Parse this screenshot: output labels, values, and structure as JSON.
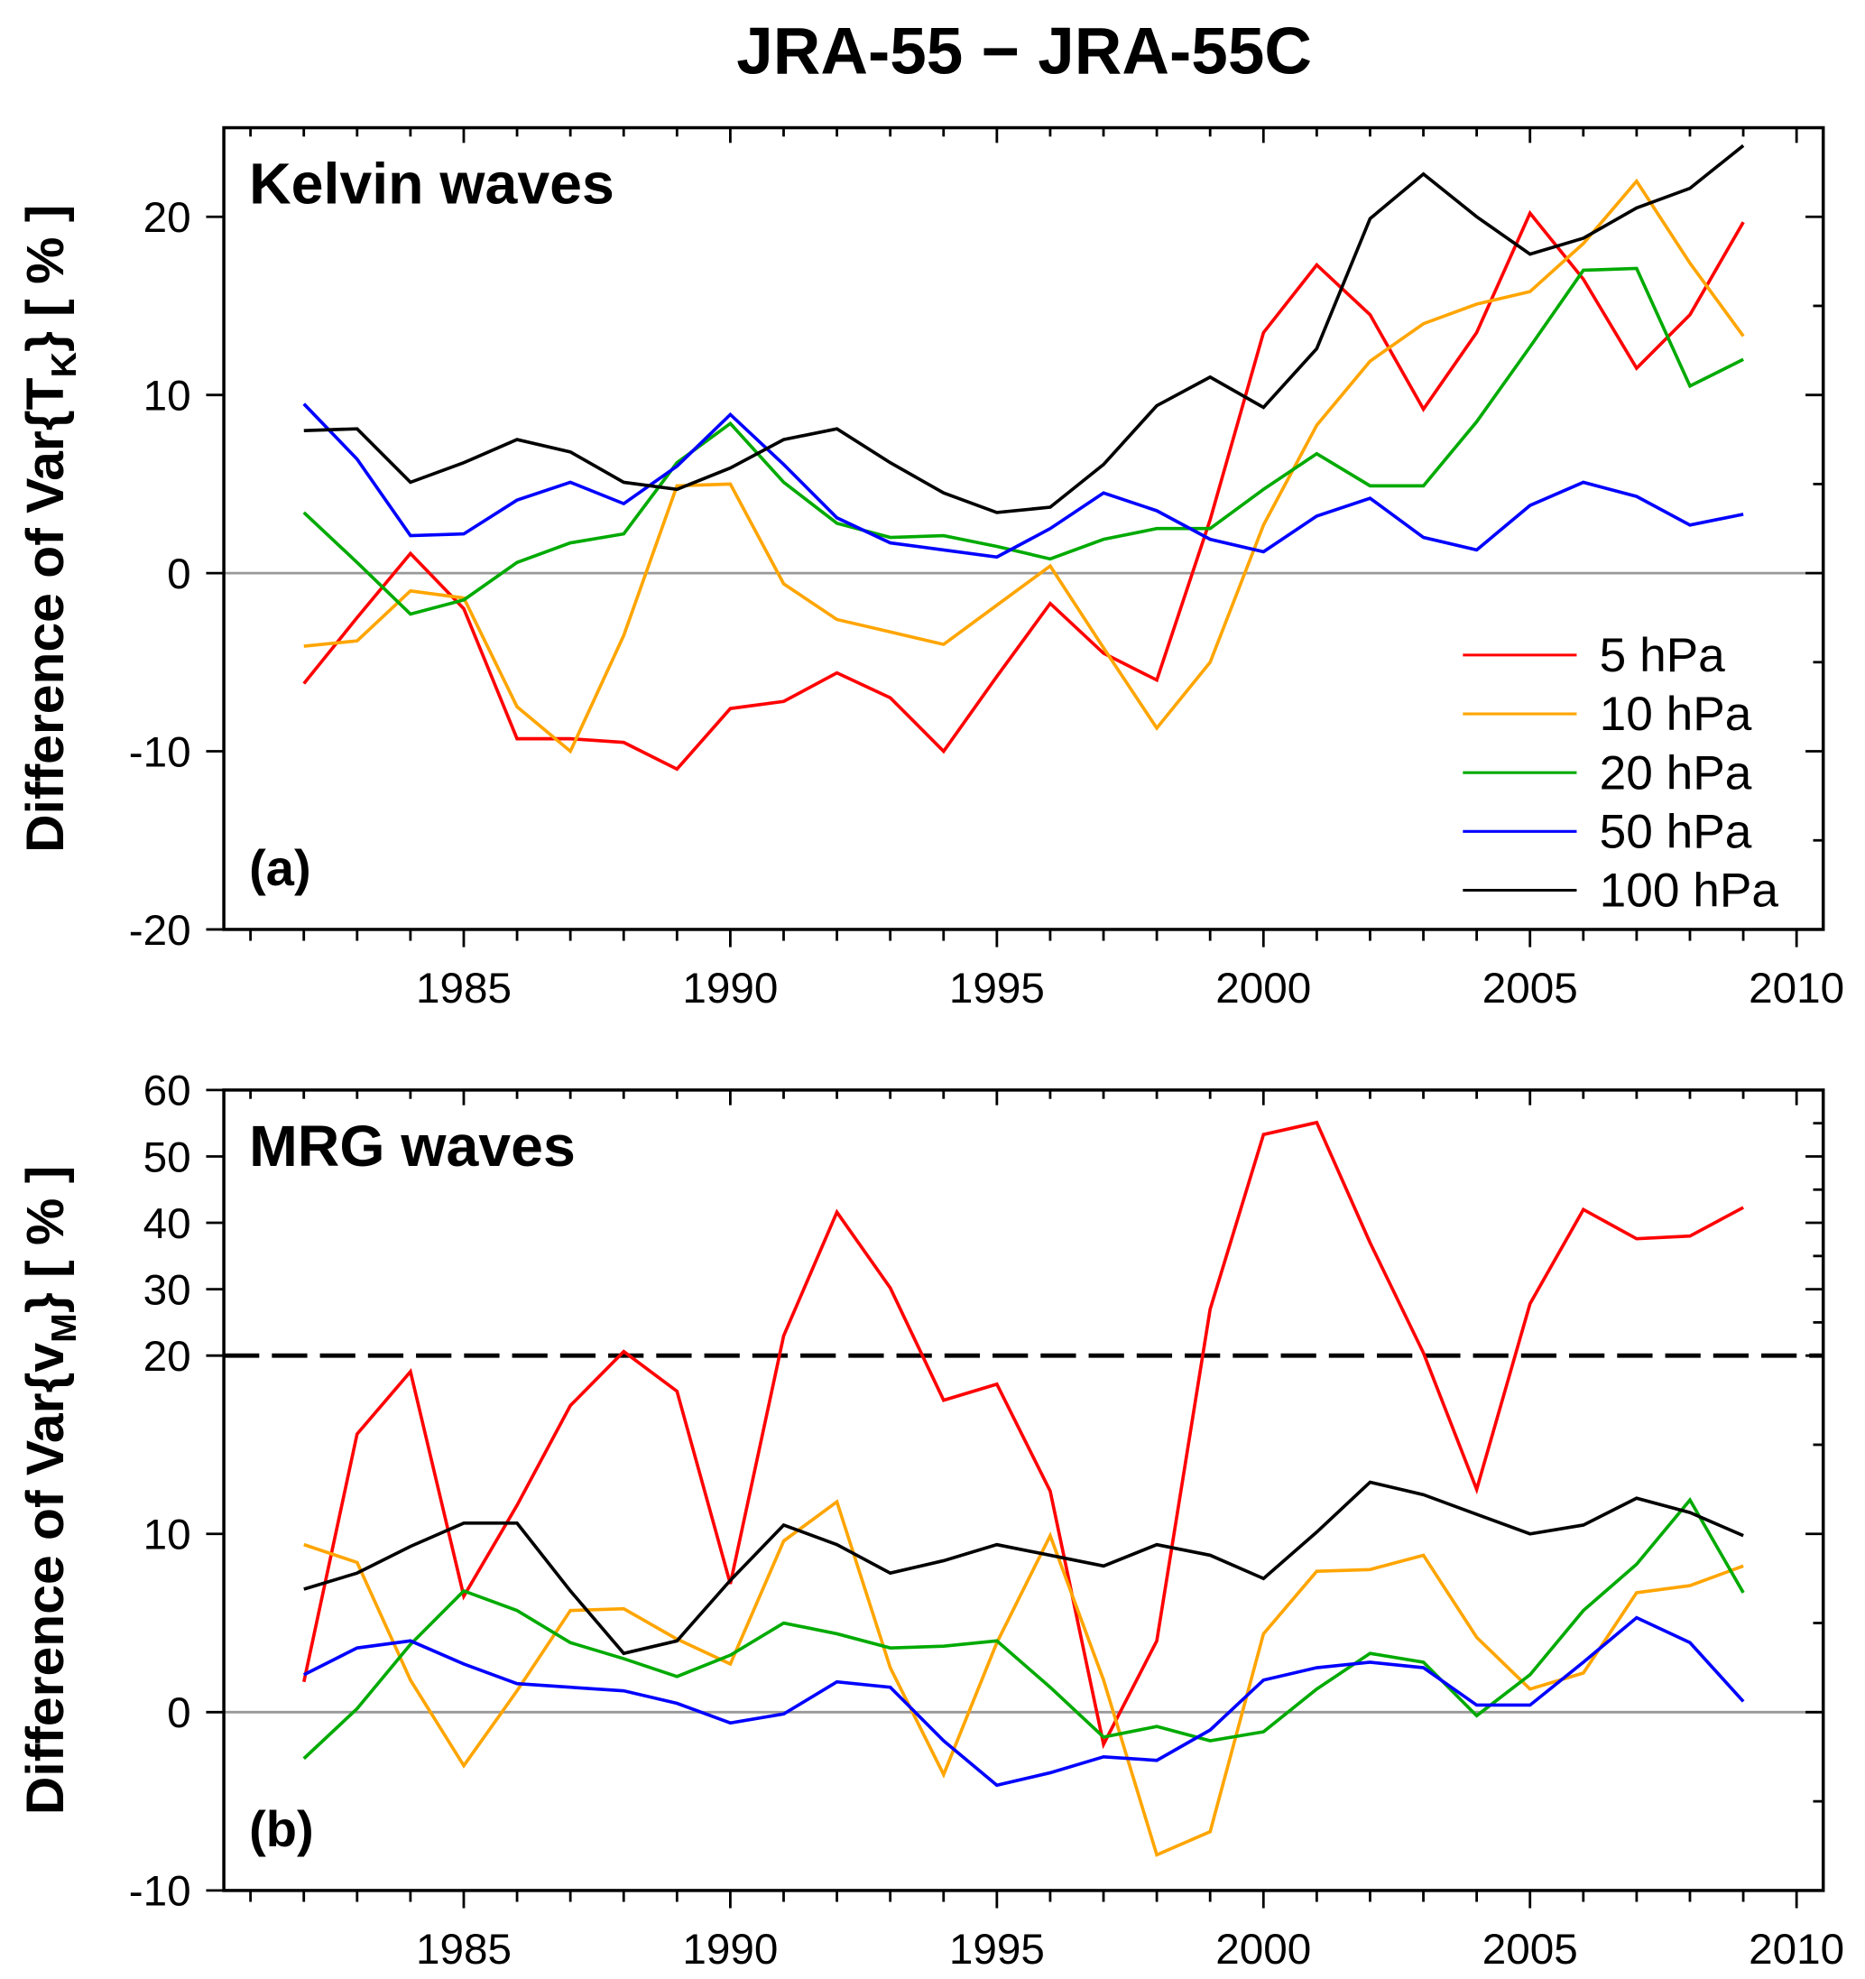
{
  "title": "JRA-55 − JRA-55C",
  "legend": {
    "placement": "right-center of panel (a)",
    "entries": [
      {
        "name": "5 hPa",
        "color": "#ff0000"
      },
      {
        "name": "10 hPa",
        "color": "#ffa500"
      },
      {
        "name": "20 hPa",
        "color": "#00aa00"
      },
      {
        "name": "50 hPa",
        "color": "#0000ff"
      },
      {
        "name": "100 hPa",
        "color": "#000000"
      }
    ]
  },
  "chart_data": [
    {
      "type": "line",
      "panel_label": "(a)",
      "title": "Kelvin waves",
      "ylabel_prefix": "Difference of Var{T",
      "ylabel_sub": "K",
      "ylabel_suffix": "}  [ % ]",
      "xlabel": "",
      "xlim": [
        1980.5,
        2010.5
      ],
      "ylim": [
        -20,
        25
      ],
      "xticks": [
        1985,
        1990,
        1995,
        2000,
        2005,
        2010
      ],
      "yticks": [
        -20,
        -10,
        0,
        10,
        20
      ],
      "reference_lines": [
        {
          "y": 0,
          "color": "#999999",
          "style": "solid"
        }
      ],
      "x": [
        1982,
        1983,
        1984,
        1985,
        1986,
        1987,
        1988,
        1989,
        1990,
        1991,
        1992,
        1993,
        1994,
        1995,
        1996,
        1997,
        1998,
        1999,
        2000,
        2001,
        2002,
        2003,
        2004,
        2005,
        2006,
        2007,
        2008,
        2009
      ],
      "series": [
        {
          "name": "5 hPa",
          "values": [
            -6.2,
            -2.5,
            1.1,
            -2,
            -9.3,
            -9.3,
            -9.5,
            -11,
            -7.6,
            -7.2,
            -5.6,
            -7,
            -10,
            -5.8,
            -1.7,
            -4.5,
            -6,
            3,
            13.5,
            17.3,
            14.5,
            9.2,
            13.5,
            20.2,
            16.5,
            11.5,
            14.5,
            19.7
          ]
        },
        {
          "name": "10 hPa",
          "values": [
            -4.1,
            -3.8,
            -1,
            -1.4,
            -7.5,
            -10,
            -3.5,
            4.9,
            5,
            -0.6,
            -2.6,
            -3.3,
            -4,
            -1.8,
            0.4,
            -4.2,
            -8.7,
            -5,
            2.7,
            8.3,
            11.9,
            14,
            15.1,
            15.8,
            18.5,
            22,
            17.4,
            13.3
          ]
        },
        {
          "name": "20 hPa",
          "values": [
            3.4,
            0.6,
            -2.3,
            -1.5,
            0.6,
            1.7,
            2.2,
            6.2,
            8.4,
            5.1,
            2.8,
            2,
            2.1,
            1.5,
            0.8,
            1.9,
            2.5,
            2.5,
            4.7,
            6.7,
            4.9,
            4.9,
            8.5,
            12.7,
            17,
            17.1,
            10.5,
            12
          ]
        },
        {
          "name": "50 hPa",
          "values": [
            9.5,
            6.4,
            2.1,
            2.2,
            4.1,
            5.1,
            3.9,
            6,
            8.9,
            6.1,
            3.1,
            1.7,
            1.3,
            0.9,
            2.5,
            4.5,
            3.5,
            1.9,
            1.2,
            3.2,
            4.2,
            2,
            1.3,
            3.8,
            5.1,
            4.3,
            2.7,
            3.3
          ]
        },
        {
          "name": "100 hPa",
          "values": [
            8,
            8.1,
            5.1,
            6.2,
            7.5,
            6.8,
            5.1,
            4.7,
            5.9,
            7.5,
            8.1,
            6.2,
            4.5,
            3.4,
            3.7,
            6.1,
            9.4,
            11,
            9.3,
            12.6,
            19.9,
            22.4,
            20,
            17.9,
            18.8,
            20.5,
            21.6,
            24
          ]
        }
      ]
    },
    {
      "type": "line",
      "panel_label": "(b)",
      "title": "MRG waves",
      "ylabel_prefix": "Difference of Var{v",
      "ylabel_sub": "M",
      "ylabel_suffix": "}  [ % ]",
      "xlabel": "",
      "xlim": [
        1980.5,
        2010.5
      ],
      "ylim": [
        -10,
        60
      ],
      "axis_break": "y-axis scale compressed above 20",
      "xticks": [
        1985,
        1990,
        1995,
        2000,
        2005,
        2010
      ],
      "yticks": [
        -10,
        0,
        10,
        20,
        30,
        40,
        50,
        60
      ],
      "reference_lines": [
        {
          "y": 0,
          "color": "#999999",
          "style": "solid"
        },
        {
          "y": 20,
          "color": "#000000",
          "style": "dashed"
        }
      ],
      "x": [
        1982,
        1983,
        1984,
        1985,
        1986,
        1987,
        1988,
        1989,
        1990,
        1991,
        1992,
        1993,
        1994,
        1995,
        1996,
        1997,
        1998,
        1999,
        2000,
        2001,
        2002,
        2003,
        2004,
        2005,
        2006,
        2007,
        2008,
        2009
      ],
      "series": [
        {
          "name": "5 hPa",
          "values": [
            1.7,
            15.6,
            19.1,
            6.5,
            11.6,
            17.2,
            20.6,
            18,
            7.2,
            23,
            41.6,
            30.2,
            17.5,
            18.4,
            12.4,
            -1.8,
            4,
            27,
            53.3,
            55.1,
            37,
            20.4,
            12.5,
            27.8,
            42,
            37.6,
            38,
            42.3
          ]
        },
        {
          "name": "10 hPa",
          "values": [
            9.4,
            8.4,
            1.8,
            -3,
            1.2,
            5.7,
            5.8,
            4.1,
            2.7,
            9.6,
            11.8,
            2.5,
            -3.5,
            3.9,
            9.9,
            1.8,
            -8,
            -6.7,
            4.4,
            7.9,
            8,
            8.8,
            4.2,
            1.3,
            2.2,
            6.7,
            7.1,
            8.2
          ]
        },
        {
          "name": "20 hPa",
          "values": [
            -2.6,
            0.2,
            3.8,
            6.8,
            5.7,
            3.9,
            3,
            2,
            3.2,
            5,
            4.4,
            3.6,
            3.7,
            4,
            1.4,
            -1.4,
            -0.8,
            -1.6,
            -1.1,
            1.3,
            3.3,
            2.8,
            -0.2,
            2.1,
            5.7,
            8.3,
            11.9,
            6.7
          ]
        },
        {
          "name": "50 hPa",
          "values": [
            2.1,
            3.6,
            4,
            2.7,
            1.6,
            1.4,
            1.2,
            0.5,
            -0.6,
            -0.1,
            1.7,
            1.4,
            -1.6,
            -4.1,
            -3.4,
            -2.5,
            -2.7,
            -1,
            1.8,
            2.5,
            2.8,
            2.5,
            0.4,
            0.4,
            2.8,
            5.3,
            3.9,
            0.6
          ]
        },
        {
          "name": "100 hPa",
          "values": [
            6.9,
            7.8,
            9.3,
            10.6,
            10.6,
            6.8,
            3.3,
            4,
            7.4,
            10.5,
            9.4,
            7.8,
            8.5,
            9.4,
            8.8,
            8.2,
            9.4,
            8.8,
            7.5,
            10.1,
            12.9,
            12.2,
            11.1,
            10,
            10.5,
            12,
            11.2,
            9.9
          ]
        }
      ]
    }
  ]
}
